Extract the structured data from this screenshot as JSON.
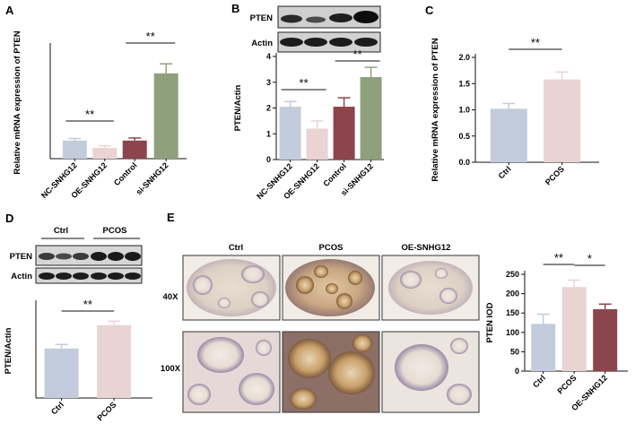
{
  "panels": {
    "A": "A",
    "B": "B",
    "C": "C",
    "D": "D",
    "E": "E"
  },
  "colors": {
    "blue": "#c2ccdc",
    "pink": "#ead3d3",
    "maroon": "#8c454c",
    "green": "#8fa17c"
  },
  "western_blots": {
    "B": {
      "bands": [
        "PTEN",
        "Actin"
      ]
    },
    "D": {
      "groups": [
        "Ctrl",
        "PCOS"
      ],
      "bands": [
        "PTEN",
        "Actin"
      ]
    }
  },
  "ihc": {
    "columns": [
      "Ctrl",
      "PCOS",
      "OE-SNHG12"
    ],
    "rows": [
      "40X",
      "100X"
    ]
  },
  "chart_data": [
    {
      "panel": "A",
      "type": "bar",
      "categories": [
        "NC-SNHG12",
        "OE-SNHG12",
        "Control",
        "si-SNHG12"
      ],
      "values": [
        1.05,
        0.62,
        1.05,
        4.95
      ],
      "errors": [
        0.12,
        0.13,
        0.15,
        0.55
      ],
      "colors": [
        "#c2ccdc",
        "#ead3d3",
        "#8c454c",
        "#8fa17c"
      ],
      "ylabel": "Relative mRNA expression of PTEN",
      "ylim": [
        0,
        6.5
      ],
      "significance": [
        {
          "between": [
            0,
            1
          ],
          "label": "**"
        },
        {
          "between": [
            2,
            3
          ],
          "label": "**"
        }
      ]
    },
    {
      "panel": "B",
      "type": "bar",
      "categories": [
        "NC-SNHG12",
        "OE-SNHG12",
        "Control",
        "si-SNHG12"
      ],
      "values": [
        2.05,
        1.2,
        2.05,
        3.2
      ],
      "errors": [
        0.2,
        0.3,
        0.35,
        0.38
      ],
      "colors": [
        "#c2ccdc",
        "#ead3d3",
        "#8c454c",
        "#8fa17c"
      ],
      "ylabel": "PTEN/Actin",
      "ylim": [
        0,
        4
      ],
      "yticks": [
        0,
        1,
        2,
        3,
        4
      ],
      "significance": [
        {
          "between": [
            0,
            1
          ],
          "label": "**"
        },
        {
          "between": [
            2,
            3
          ],
          "label": "**"
        }
      ]
    },
    {
      "panel": "C",
      "type": "bar",
      "categories": [
        "Ctrl",
        "PCOS"
      ],
      "values": [
        1.02,
        1.58
      ],
      "errors": [
        0.1,
        0.14
      ],
      "colors": [
        "#c2ccdc",
        "#ead3d3"
      ],
      "ylabel": "Relative mRNA expression of PTEN",
      "ylim": [
        0,
        2.0
      ],
      "yticks": [
        0.0,
        0.5,
        1.0,
        1.5,
        2.0
      ],
      "significance": [
        {
          "between": [
            0,
            1
          ],
          "label": "**"
        }
      ]
    },
    {
      "panel": "D",
      "type": "bar",
      "categories": [
        "Ctrl",
        "PCOS"
      ],
      "values": [
        1.0,
        1.47
      ],
      "errors": [
        0.08,
        0.08
      ],
      "colors": [
        "#c2ccdc",
        "#ead3d3"
      ],
      "ylabel": "PTEN/Actin",
      "ylim": [
        0,
        1.9
      ],
      "significance": [
        {
          "between": [
            0,
            1
          ],
          "label": "**"
        }
      ]
    },
    {
      "panel": "E",
      "type": "bar",
      "categories": [
        "Ctrl",
        "PCOS",
        "OE-SNHG12"
      ],
      "values": [
        122,
        217,
        160
      ],
      "errors": [
        25,
        18,
        13
      ],
      "colors": [
        "#c2ccdc",
        "#ead3d3",
        "#8c454c"
      ],
      "ylabel": "PTEN IOD",
      "ylim": [
        0,
        250
      ],
      "yticks": [
        0,
        50,
        100,
        150,
        200,
        250
      ],
      "significance": [
        {
          "between": [
            0,
            1
          ],
          "label": "**"
        },
        {
          "between": [
            1,
            2
          ],
          "label": "*"
        }
      ]
    }
  ]
}
